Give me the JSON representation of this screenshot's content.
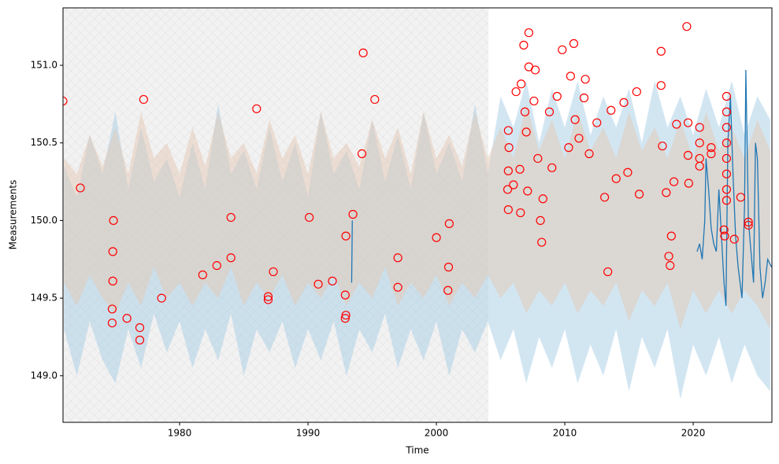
{
  "chart_data": {
    "type": "line",
    "xlabel": "Time",
    "ylabel": "Measurements",
    "xlim": [
      1970.92,
      2026.13
    ],
    "ylim": [
      148.7,
      151.37
    ],
    "xticks": [
      1980,
      1990,
      2000,
      2010,
      2020
    ],
    "yticks": [
      {
        "value": 149,
        "label": "149.0"
      },
      {
        "value": 149.5,
        "label": "149.5"
      },
      {
        "value": 150,
        "label": "150.0"
      },
      {
        "value": 150.5,
        "label": "150.5"
      },
      {
        "value": 151,
        "label": "151.0"
      }
    ],
    "shaded_xrange": [
      1970.92,
      2004.05
    ],
    "shaded_color": "#f2f2f2",
    "bands": [
      {
        "color": "#a6cde6",
        "x": [
          1971,
          1972,
          1973,
          1974,
          1975,
          1976,
          1977,
          1978,
          1979,
          1980,
          1981,
          1982,
          1983,
          1984,
          1985,
          1986,
          1987,
          1988,
          1989,
          1990,
          1991,
          1992,
          1993,
          1994,
          1995,
          1996,
          1997,
          1998,
          1999,
          2000,
          2001,
          2002,
          2003,
          2004,
          2005,
          2006,
          2007,
          2008,
          2009,
          2010,
          2011,
          2012,
          2013,
          2014,
          2015,
          2016,
          2017,
          2018,
          2019,
          2020,
          2021,
          2022,
          2023,
          2024,
          2025,
          2026
        ],
        "upper": [
          150.35,
          150.15,
          150.55,
          150.3,
          150.7,
          150.2,
          150.6,
          150.25,
          150.4,
          150.15,
          150.5,
          150.2,
          150.75,
          150.3,
          150.45,
          150.2,
          150.6,
          150.25,
          150.5,
          150.15,
          150.7,
          150.3,
          150.45,
          150.2,
          150.65,
          150.25,
          150.55,
          150.2,
          150.7,
          150.3,
          150.5,
          150.25,
          150.75,
          150.3,
          150.8,
          150.6,
          150.9,
          150.5,
          150.85,
          150.6,
          150.9,
          150.55,
          150.8,
          150.6,
          150.85,
          150.5,
          150.9,
          150.6,
          150.8,
          150.55,
          150.85,
          150.6,
          150.9,
          150.55,
          150.8,
          150.65
        ],
        "lower": [
          149.3,
          149.0,
          149.35,
          149.1,
          148.95,
          149.3,
          149.05,
          149.4,
          149.15,
          149.35,
          149.05,
          149.3,
          149.1,
          149.4,
          149.0,
          149.3,
          149.15,
          149.35,
          149.05,
          149.3,
          149.1,
          149.35,
          149.0,
          149.3,
          149.15,
          149.4,
          149.05,
          149.3,
          149.1,
          149.35,
          149.0,
          149.3,
          149.15,
          149.35,
          149.1,
          149.3,
          148.95,
          149.25,
          149.05,
          149.3,
          148.95,
          149.2,
          149.0,
          149.3,
          148.9,
          149.25,
          149.05,
          149.3,
          148.85,
          149.2,
          149.0,
          149.25,
          148.95,
          149.2,
          149.0,
          148.9
        ]
      },
      {
        "color": "#e3c7b4",
        "x": [
          1971,
          1972,
          1973,
          1974,
          1975,
          1976,
          1977,
          1978,
          1979,
          1980,
          1981,
          1982,
          1983,
          1984,
          1985,
          1986,
          1987,
          1988,
          1989,
          1990,
          1991,
          1992,
          1993,
          1994,
          1995,
          1996,
          1997,
          1998,
          1999,
          2000,
          2001,
          2002,
          2003,
          2004,
          2005,
          2006,
          2007,
          2008,
          2009,
          2010,
          2011,
          2012,
          2013,
          2014,
          2015,
          2016,
          2017,
          2018,
          2019,
          2020,
          2021,
          2022,
          2023,
          2024,
          2025,
          2026
        ],
        "upper": [
          150.4,
          150.3,
          150.55,
          150.35,
          150.6,
          150.3,
          150.7,
          150.4,
          150.5,
          150.3,
          150.6,
          150.35,
          150.7,
          150.4,
          150.5,
          150.3,
          150.65,
          150.4,
          150.55,
          150.3,
          150.7,
          150.4,
          150.5,
          150.35,
          150.65,
          150.4,
          150.6,
          150.3,
          150.7,
          150.4,
          150.55,
          150.35,
          150.7,
          150.4,
          150.6,
          150.4,
          150.75,
          150.45,
          150.65,
          150.4,
          150.7,
          150.45,
          150.6,
          150.4,
          150.7,
          150.45,
          150.6,
          150.4,
          150.65,
          150.4,
          150.7,
          150.45,
          150.6,
          150.4,
          150.65,
          150.45
        ],
        "lower": [
          149.6,
          149.45,
          149.65,
          149.5,
          149.4,
          149.6,
          149.45,
          149.7,
          149.5,
          149.6,
          149.45,
          149.6,
          149.5,
          149.7,
          149.45,
          149.6,
          149.5,
          149.65,
          149.45,
          149.6,
          149.5,
          149.65,
          149.45,
          149.6,
          149.5,
          149.7,
          149.45,
          149.6,
          149.5,
          149.65,
          149.45,
          149.6,
          149.5,
          149.65,
          149.5,
          149.6,
          149.4,
          149.55,
          149.45,
          149.6,
          149.4,
          149.55,
          149.45,
          149.6,
          149.35,
          149.55,
          149.45,
          149.6,
          149.3,
          149.55,
          149.4,
          149.55,
          149.4,
          149.55,
          149.45,
          149.3
        ]
      }
    ],
    "series": [
      {
        "color": "#1f77b4",
        "x": [
          1993.4,
          1993.45,
          1994,
          2020.3,
          2020.5,
          2020.7,
          2020.9,
          2021.0,
          2021.2,
          2021.4,
          2021.6,
          2021.8,
          2022.0,
          2022.2,
          2022.4,
          2022.55,
          2022.7,
          2022.9,
          2023.1,
          2023.3,
          2023.5,
          2023.8,
          2024.0,
          2024.1,
          2024.3,
          2024.5,
          2024.7,
          2024.85,
          2025.0,
          2025.2,
          2025.4,
          2025.6,
          2025.8,
          2026.1
        ],
        "values": [
          149.6,
          150.0,
          null,
          149.8,
          149.85,
          149.75,
          150.0,
          150.4,
          150.2,
          149.95,
          149.85,
          149.8,
          150.2,
          149.9,
          149.6,
          149.45,
          150.5,
          150.8,
          150.3,
          149.9,
          149.7,
          149.5,
          150.1,
          150.97,
          150.0,
          149.8,
          149.6,
          150.5,
          150.4,
          149.7,
          149.5,
          149.6,
          149.75,
          149.7
        ]
      }
    ],
    "outliers": {
      "color": "#ff0000",
      "x": [
        1970.92,
        1972.27,
        1974.85,
        1974.8,
        1974.8,
        1974.75,
        1974.75,
        1975.9,
        1976.9,
        1976.9,
        1977.2,
        1978.6,
        1981.8,
        1982.9,
        1984.0,
        1984.0,
        1986.0,
        1986.9,
        1986.9,
        1987.3,
        1990.1,
        1990.8,
        1991.9,
        1992.9,
        1992.9,
        1992.95,
        1992.95,
        1993.5,
        1994.2,
        1994.3,
        1995.2,
        1997.0,
        1997.0,
        2000.0,
        2001.0,
        2000.95,
        2000.9,
        2005.6,
        2005.65,
        2005.55,
        2005.6,
        2005.6,
        2006.0,
        2006.2,
        2006.5,
        2006.55,
        2006.6,
        2006.8,
        2006.9,
        2007.0,
        2007.1,
        2007.2,
        2007.2,
        2007.6,
        2007.7,
        2007.9,
        2008.1,
        2008.2,
        2008.3,
        2008.8,
        2009.0,
        2009.4,
        2009.8,
        2010.3,
        2010.45,
        2010.7,
        2010.8,
        2011.1,
        2011.5,
        2011.6,
        2011.9,
        2012.5,
        2013.1,
        2013.35,
        2013.6,
        2014.0,
        2014.6,
        2014.9,
        2015.6,
        2015.8,
        2017.5,
        2017.5,
        2017.6,
        2017.9,
        2018.1,
        2018.2,
        2018.3,
        2018.5,
        2018.7,
        2019.5,
        2019.6,
        2019.6,
        2019.65,
        2020.5,
        2020.5,
        2020.5,
        2020.5,
        2021.4,
        2021.4,
        2022.6,
        2022.6,
        2022.6,
        2022.6,
        2022.6,
        2022.6,
        2022.6,
        2022.6,
        2022.4,
        2022.45,
        2023.2,
        2023.7,
        2024.3,
        2024.3
      ],
      "values": [
        150.77,
        150.21,
        150.0,
        149.8,
        149.61,
        149.43,
        149.34,
        149.37,
        149.31,
        149.23,
        150.78,
        149.5,
        149.65,
        149.71,
        149.76,
        150.02,
        150.72,
        149.49,
        149.51,
        149.67,
        150.02,
        149.59,
        149.61,
        149.37,
        149.52,
        149.39,
        149.9,
        150.04,
        150.43,
        151.08,
        150.78,
        149.76,
        149.57,
        149.89,
        149.98,
        149.7,
        149.55,
        150.58,
        150.47,
        150.2,
        150.32,
        150.07,
        150.23,
        150.83,
        150.33,
        150.05,
        150.88,
        151.13,
        150.7,
        150.57,
        150.19,
        151.21,
        150.99,
        150.77,
        150.97,
        150.4,
        150.0,
        149.86,
        150.14,
        150.7,
        150.34,
        150.8,
        151.1,
        150.47,
        150.93,
        151.14,
        150.65,
        150.53,
        150.79,
        150.91,
        150.43,
        150.63,
        150.15,
        149.67,
        150.71,
        150.27,
        150.76,
        150.31,
        150.83,
        150.17,
        151.09,
        150.87,
        150.48,
        150.18,
        149.77,
        149.71,
        149.9,
        150.25,
        150.62,
        151.25,
        150.63,
        150.42,
        150.24,
        150.6,
        150.5,
        150.4,
        150.35,
        150.47,
        150.43,
        150.8,
        150.7,
        150.6,
        150.5,
        150.4,
        150.3,
        150.2,
        150.13,
        149.94,
        149.9,
        149.88,
        150.15,
        149.99,
        149.97
      ]
    }
  }
}
